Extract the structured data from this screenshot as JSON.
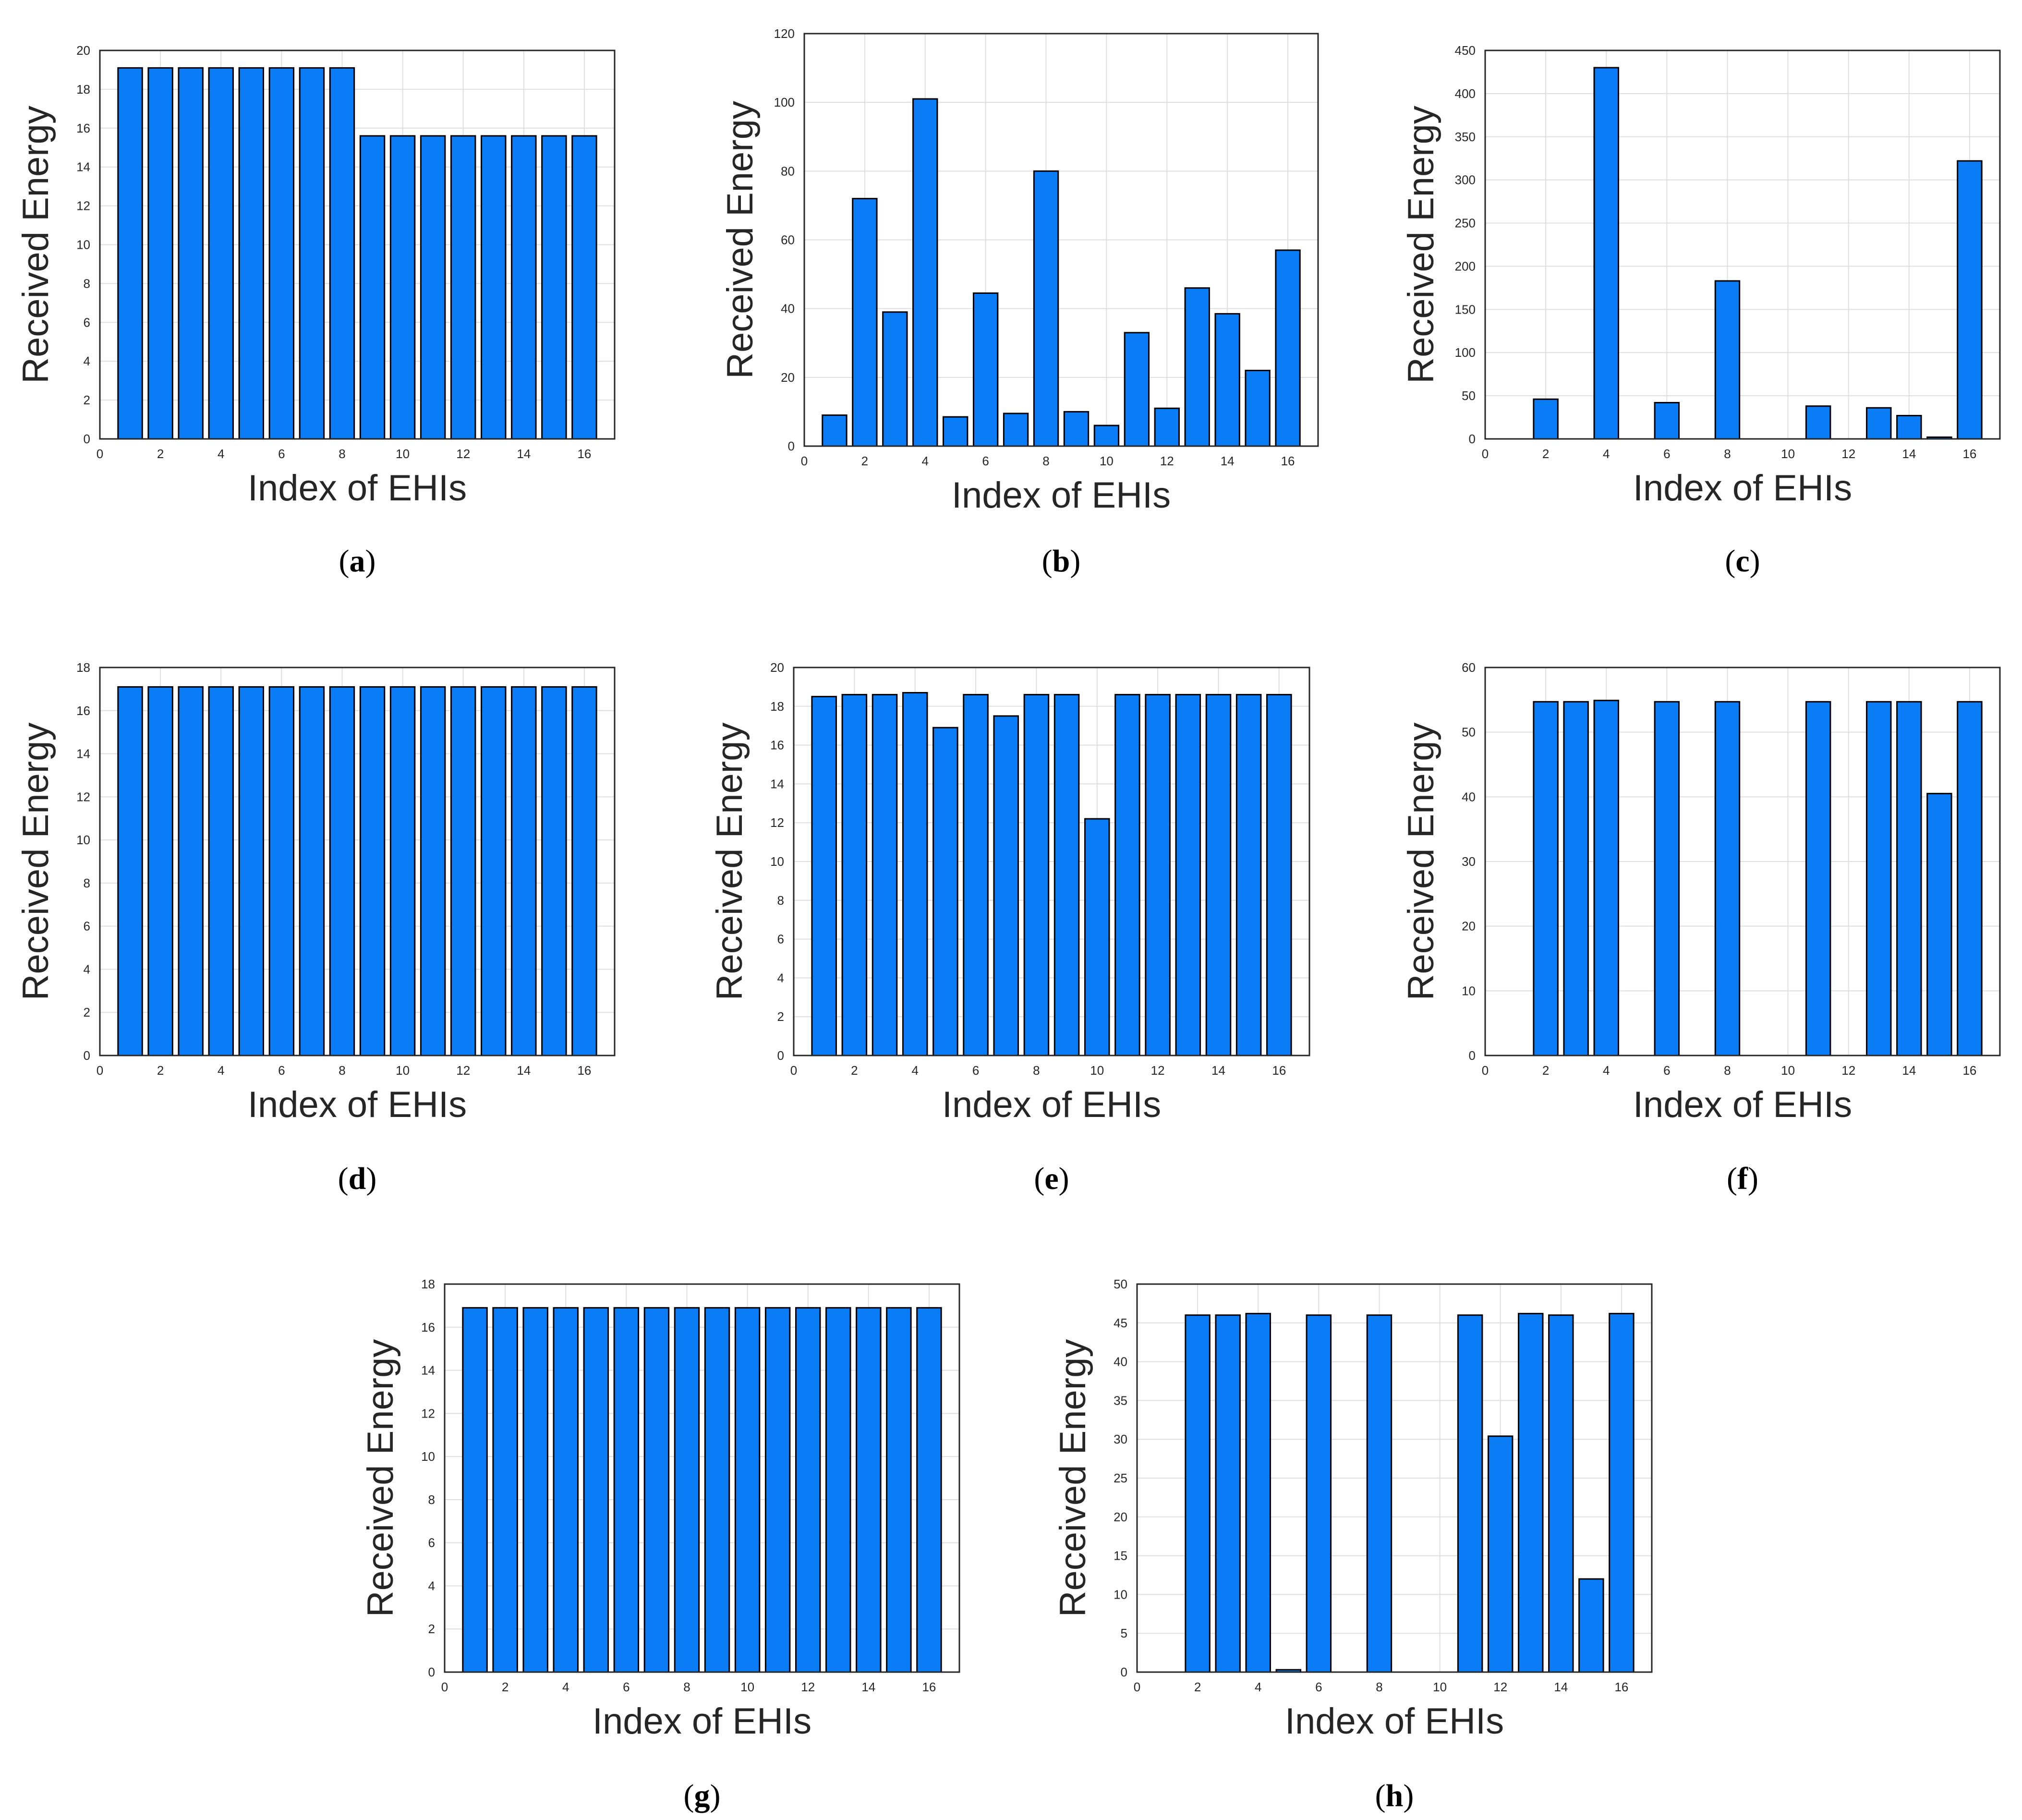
{
  "panels_note": "",
  "colors": {
    "bar": "#0a7cf5",
    "bar_edge": "#000000",
    "grid": "#dedede",
    "axis": "#262626"
  },
  "chart_data": [
    {
      "id": "a",
      "caption": "a",
      "type": "bar",
      "xlabel": "Index of EHIs",
      "ylabel": "Received Energy",
      "xlim": [
        0,
        17
      ],
      "ylim": [
        0,
        20
      ],
      "grid": true,
      "xticks": [
        0,
        2,
        4,
        6,
        8,
        10,
        12,
        14,
        16
      ],
      "yticks": [
        0,
        2,
        4,
        6,
        8,
        10,
        12,
        14,
        16,
        18,
        20
      ],
      "x": [
        1,
        2,
        3,
        4,
        5,
        6,
        7,
        8,
        9,
        10,
        11,
        12,
        13,
        14,
        15,
        16
      ],
      "values": [
        19.1,
        19.1,
        19.1,
        19.1,
        19.1,
        19.1,
        19.1,
        19.1,
        15.6,
        15.6,
        15.6,
        15.6,
        15.6,
        15.6,
        15.6,
        15.6
      ]
    },
    {
      "id": "b",
      "caption": "b",
      "type": "bar",
      "xlabel": "Index of EHIs",
      "ylabel": "Received Energy",
      "xlim": [
        0,
        17
      ],
      "ylim": [
        0,
        120
      ],
      "grid": true,
      "xticks": [
        0,
        2,
        4,
        6,
        8,
        10,
        12,
        14,
        16
      ],
      "yticks": [
        0,
        20,
        40,
        60,
        80,
        100,
        120
      ],
      "x": [
        1,
        2,
        3,
        4,
        5,
        6,
        7,
        8,
        9,
        10,
        11,
        12,
        13,
        14,
        15,
        16
      ],
      "values": [
        9,
        72,
        39,
        101,
        8.5,
        44.5,
        9.5,
        80,
        10,
        6,
        33,
        11,
        46,
        38.5,
        22,
        57
      ]
    },
    {
      "id": "c",
      "caption": "c",
      "type": "bar",
      "xlabel": "Index of EHIs",
      "ylabel": "Received Energy",
      "xlim": [
        0,
        17
      ],
      "ylim": [
        0,
        450
      ],
      "grid": true,
      "xticks": [
        0,
        2,
        4,
        6,
        8,
        10,
        12,
        14,
        16
      ],
      "yticks": [
        0,
        50,
        100,
        150,
        200,
        250,
        300,
        350,
        400,
        450
      ],
      "x": [
        1,
        2,
        3,
        4,
        5,
        6,
        7,
        8,
        9,
        10,
        11,
        12,
        13,
        14,
        15,
        16
      ],
      "values": [
        0,
        46,
        0,
        430,
        0,
        42,
        0,
        183,
        0,
        0,
        38,
        0,
        36,
        27,
        2,
        322
      ]
    },
    {
      "id": "d",
      "caption": "d",
      "type": "bar",
      "xlabel": "Index of EHIs",
      "ylabel": "Received Energy",
      "xlim": [
        0,
        17
      ],
      "ylim": [
        0,
        18
      ],
      "grid": true,
      "xticks": [
        0,
        2,
        4,
        6,
        8,
        10,
        12,
        14,
        16
      ],
      "yticks": [
        0,
        2,
        4,
        6,
        8,
        10,
        12,
        14,
        16,
        18
      ],
      "x": [
        1,
        2,
        3,
        4,
        5,
        6,
        7,
        8,
        9,
        10,
        11,
        12,
        13,
        14,
        15,
        16
      ],
      "values": [
        17.1,
        17.1,
        17.1,
        17.1,
        17.1,
        17.1,
        17.1,
        17.1,
        17.1,
        17.1,
        17.1,
        17.1,
        17.1,
        17.1,
        17.1,
        17.1
      ]
    },
    {
      "id": "e",
      "caption": "e",
      "type": "bar",
      "xlabel": "Index of EHIs",
      "ylabel": "Received Energy",
      "xlim": [
        0,
        17
      ],
      "ylim": [
        0,
        20
      ],
      "grid": true,
      "xticks": [
        0,
        2,
        4,
        6,
        8,
        10,
        12,
        14,
        16
      ],
      "yticks": [
        0,
        2,
        4,
        6,
        8,
        10,
        12,
        14,
        16,
        18,
        20
      ],
      "x": [
        1,
        2,
        3,
        4,
        5,
        6,
        7,
        8,
        9,
        10,
        11,
        12,
        13,
        14,
        15,
        16
      ],
      "values": [
        18.5,
        18.6,
        18.6,
        18.7,
        16.9,
        18.6,
        17.5,
        18.6,
        18.6,
        12.2,
        18.6,
        18.6,
        18.6,
        18.6,
        18.6,
        18.6
      ]
    },
    {
      "id": "f",
      "caption": "f",
      "type": "bar",
      "xlabel": "Index of EHIs",
      "ylabel": "Received Energy",
      "xlim": [
        0,
        17
      ],
      "ylim": [
        0,
        60
      ],
      "grid": true,
      "xticks": [
        0,
        2,
        4,
        6,
        8,
        10,
        12,
        14,
        16
      ],
      "yticks": [
        0,
        10,
        20,
        30,
        40,
        50,
        60
      ],
      "x": [
        1,
        2,
        3,
        4,
        5,
        6,
        7,
        8,
        9,
        10,
        11,
        12,
        13,
        14,
        15,
        16
      ],
      "values": [
        0,
        54.7,
        54.7,
        54.9,
        0,
        54.7,
        0,
        54.7,
        0,
        0,
        54.7,
        0,
        54.7,
        54.7,
        40.5,
        54.7
      ]
    },
    {
      "id": "g",
      "caption": "g",
      "type": "bar",
      "xlabel": "Index of EHIs",
      "ylabel": "Received Energy",
      "xlim": [
        0,
        17
      ],
      "ylim": [
        0,
        18
      ],
      "grid": true,
      "xticks": [
        0,
        2,
        4,
        6,
        8,
        10,
        12,
        14,
        16
      ],
      "yticks": [
        0,
        2,
        4,
        6,
        8,
        10,
        12,
        14,
        16,
        18
      ],
      "x": [
        1,
        2,
        3,
        4,
        5,
        6,
        7,
        8,
        9,
        10,
        11,
        12,
        13,
        14,
        15,
        16
      ],
      "values": [
        16.9,
        16.9,
        16.9,
        16.9,
        16.9,
        16.9,
        16.9,
        16.9,
        16.9,
        16.9,
        16.9,
        16.9,
        16.9,
        16.9,
        16.9,
        16.9
      ]
    },
    {
      "id": "h",
      "caption": "h",
      "type": "bar",
      "xlabel": "Index of EHIs",
      "ylabel": "Received Energy",
      "xlim": [
        0,
        17
      ],
      "ylim": [
        0,
        50
      ],
      "grid": true,
      "xticks": [
        0,
        2,
        4,
        6,
        8,
        10,
        12,
        14,
        16
      ],
      "yticks": [
        0,
        5,
        10,
        15,
        20,
        25,
        30,
        35,
        40,
        45,
        50
      ],
      "x": [
        1,
        2,
        3,
        4,
        5,
        6,
        7,
        8,
        9,
        10,
        11,
        12,
        13,
        14,
        15,
        16
      ],
      "values": [
        0,
        46.0,
        46.0,
        46.2,
        0.3,
        46.0,
        0,
        46.0,
        0,
        0,
        46.0,
        30.4,
        46.2,
        46.0,
        12.0,
        46.2
      ]
    }
  ]
}
